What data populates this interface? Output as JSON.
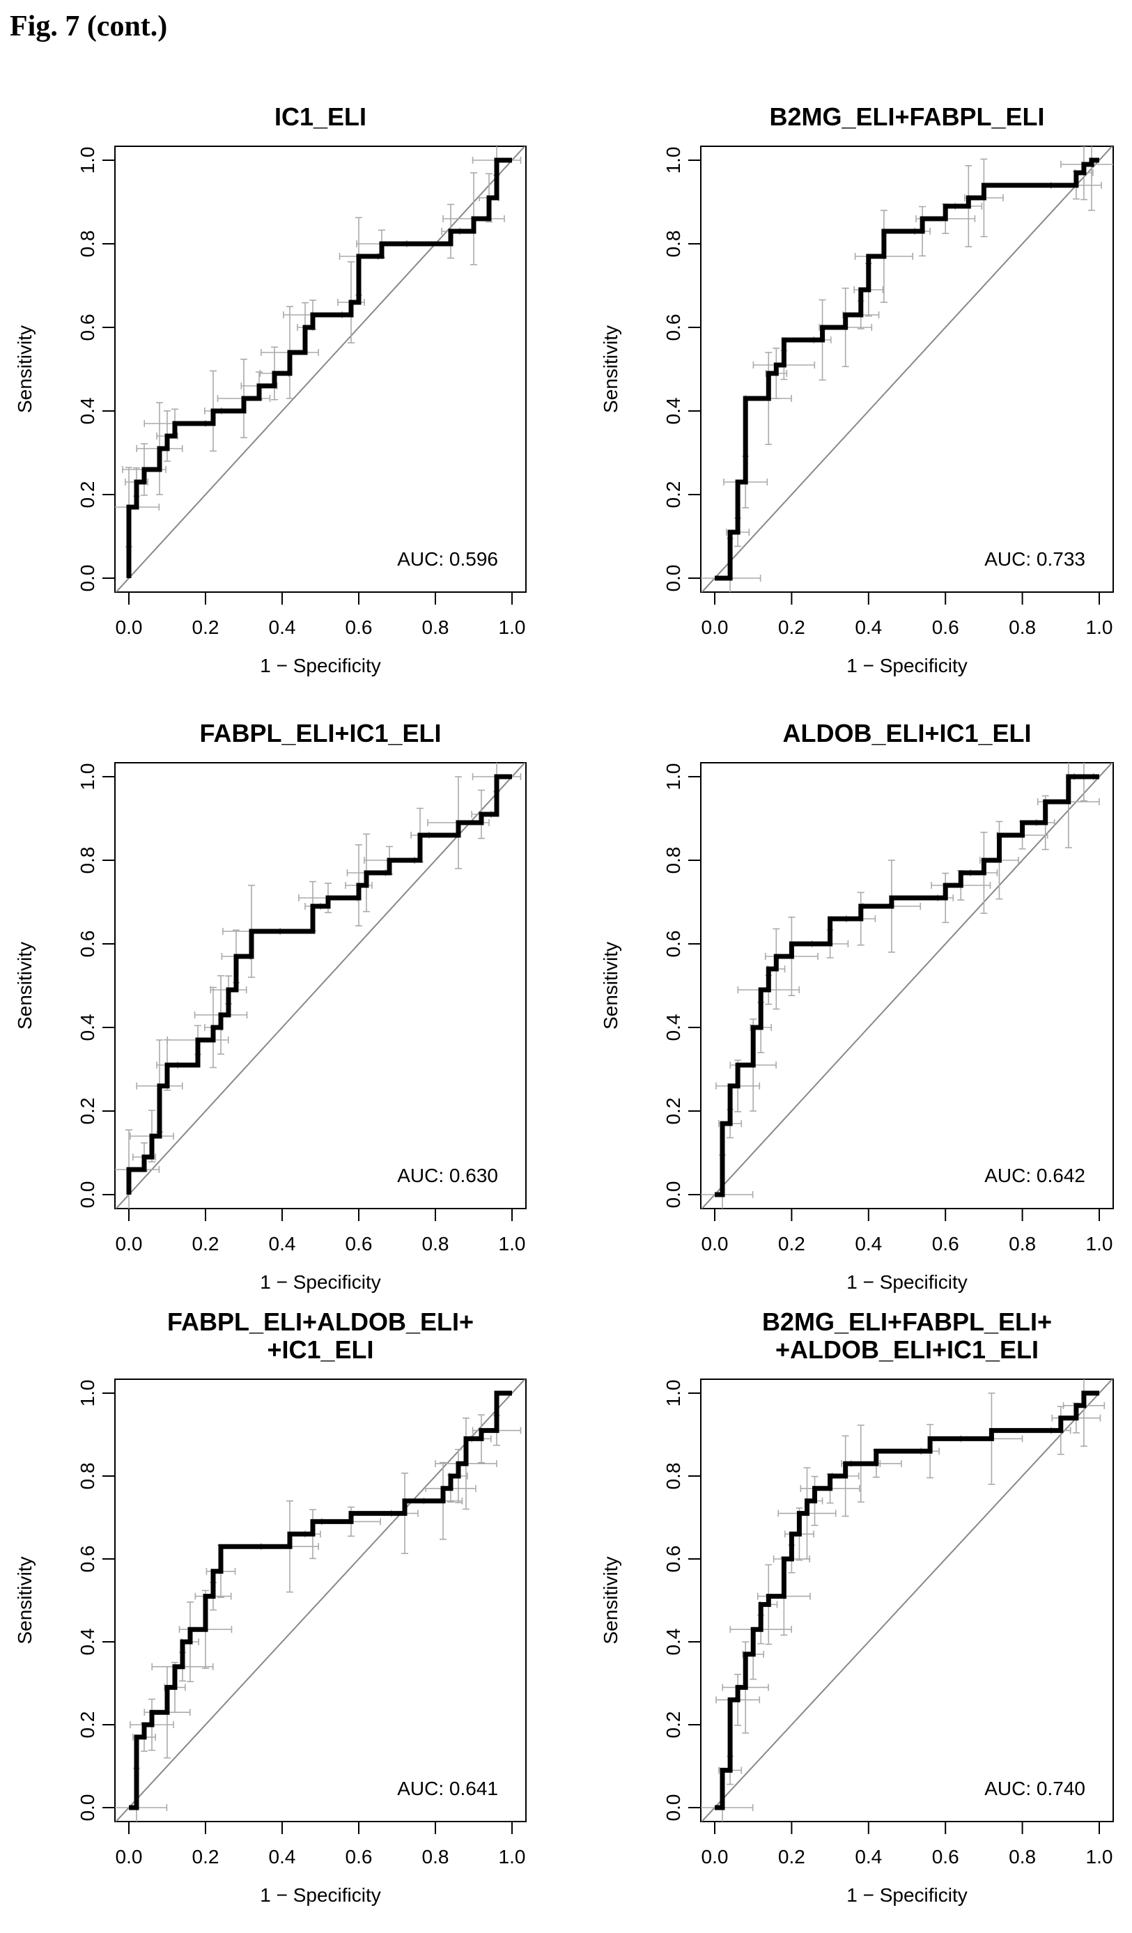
{
  "figure_label": "Fig. 7 (cont.)",
  "chart_data": [
    {
      "type": "line",
      "title": "IC1_ELI",
      "xlabel": "1 − Specificity",
      "ylabel": "Sensitivity",
      "xlim": [
        0,
        1
      ],
      "ylim": [
        0,
        1
      ],
      "xticks": [
        "0.0",
        "0.2",
        "0.4",
        "0.6",
        "0.8",
        "1.0"
      ],
      "yticks": [
        "0.0",
        "0.2",
        "0.4",
        "0.6",
        "0.8",
        "1.0"
      ],
      "auc_label": "AUC: 0.596",
      "series": [
        {
          "x": [
            0,
            0,
            0.02,
            0.02,
            0.04,
            0.04,
            0.08,
            0.08,
            0.1,
            0.1,
            0.12,
            0.12,
            0.22,
            0.22,
            0.3,
            0.3,
            0.34,
            0.34,
            0.38,
            0.38,
            0.42,
            0.42,
            0.46,
            0.46,
            0.48,
            0.48,
            0.58,
            0.58,
            0.6,
            0.6,
            0.66,
            0.66,
            0.84,
            0.84,
            0.9,
            0.9,
            0.94,
            0.94,
            0.96,
            0.96,
            1.0
          ],
          "y": [
            0,
            0.17,
            0.17,
            0.23,
            0.23,
            0.26,
            0.26,
            0.31,
            0.31,
            0.34,
            0.34,
            0.37,
            0.37,
            0.4,
            0.4,
            0.43,
            0.43,
            0.46,
            0.46,
            0.49,
            0.49,
            0.54,
            0.54,
            0.6,
            0.6,
            0.63,
            0.63,
            0.66,
            0.66,
            0.77,
            0.77,
            0.8,
            0.8,
            0.83,
            0.83,
            0.86,
            0.86,
            0.91,
            0.91,
            1.0,
            1.0
          ]
        }
      ]
    },
    {
      "type": "line",
      "title": "B2MG_ELI+FABPL_ELI",
      "xlabel": "1 − Specificity",
      "ylabel": "Sensitivity",
      "xlim": [
        0,
        1
      ],
      "ylim": [
        0,
        1
      ],
      "xticks": [
        "0.0",
        "0.2",
        "0.4",
        "0.6",
        "0.8",
        "1.0"
      ],
      "yticks": [
        "0.0",
        "0.2",
        "0.4",
        "0.6",
        "0.8",
        "1.0"
      ],
      "auc_label": "AUC: 0.733",
      "series": [
        {
          "x": [
            0,
            0.04,
            0.04,
            0.06,
            0.06,
            0.08,
            0.08,
            0.14,
            0.14,
            0.16,
            0.16,
            0.18,
            0.18,
            0.28,
            0.28,
            0.34,
            0.34,
            0.38,
            0.38,
            0.4,
            0.4,
            0.44,
            0.44,
            0.54,
            0.54,
            0.6,
            0.6,
            0.66,
            0.66,
            0.7,
            0.7,
            0.94,
            0.94,
            0.96,
            0.96,
            0.98,
            0.98,
            1.0
          ],
          "y": [
            0,
            0,
            0.11,
            0.11,
            0.23,
            0.23,
            0.43,
            0.43,
            0.49,
            0.49,
            0.51,
            0.51,
            0.57,
            0.57,
            0.6,
            0.6,
            0.63,
            0.63,
            0.69,
            0.69,
            0.77,
            0.77,
            0.83,
            0.83,
            0.86,
            0.86,
            0.89,
            0.89,
            0.91,
            0.91,
            0.94,
            0.94,
            0.97,
            0.97,
            0.99,
            0.99,
            1.0,
            1.0
          ]
        }
      ]
    },
    {
      "type": "line",
      "title": "FABPL_ELI+IC1_ELI",
      "xlabel": "1 − Specificity",
      "ylabel": "Sensitivity",
      "xlim": [
        0,
        1
      ],
      "ylim": [
        0,
        1
      ],
      "xticks": [
        "0.0",
        "0.2",
        "0.4",
        "0.6",
        "0.8",
        "1.0"
      ],
      "yticks": [
        "0.0",
        "0.2",
        "0.4",
        "0.6",
        "0.8",
        "1.0"
      ],
      "auc_label": "AUC: 0.630",
      "series": [
        {
          "x": [
            0,
            0,
            0.04,
            0.04,
            0.06,
            0.06,
            0.08,
            0.08,
            0.1,
            0.1,
            0.18,
            0.18,
            0.22,
            0.22,
            0.24,
            0.24,
            0.26,
            0.26,
            0.28,
            0.28,
            0.32,
            0.32,
            0.48,
            0.48,
            0.52,
            0.52,
            0.6,
            0.6,
            0.62,
            0.62,
            0.68,
            0.68,
            0.76,
            0.76,
            0.86,
            0.86,
            0.92,
            0.92,
            0.96,
            0.96,
            1.0
          ],
          "y": [
            0,
            0.06,
            0.06,
            0.09,
            0.09,
            0.14,
            0.14,
            0.26,
            0.26,
            0.31,
            0.31,
            0.37,
            0.37,
            0.4,
            0.4,
            0.43,
            0.43,
            0.49,
            0.49,
            0.57,
            0.57,
            0.63,
            0.63,
            0.69,
            0.69,
            0.71,
            0.71,
            0.74,
            0.74,
            0.77,
            0.77,
            0.8,
            0.8,
            0.86,
            0.86,
            0.89,
            0.89,
            0.91,
            0.91,
            1.0,
            1.0
          ]
        }
      ]
    },
    {
      "type": "line",
      "title": "ALDOB_ELI+IC1_ELI",
      "xlabel": "1 − Specificity",
      "ylabel": "Sensitivity",
      "xlim": [
        0,
        1
      ],
      "ylim": [
        0,
        1
      ],
      "xticks": [
        "0.0",
        "0.2",
        "0.4",
        "0.6",
        "0.8",
        "1.0"
      ],
      "yticks": [
        "0.0",
        "0.2",
        "0.4",
        "0.6",
        "0.8",
        "1.0"
      ],
      "auc_label": "AUC: 0.642",
      "series": [
        {
          "x": [
            0,
            0.02,
            0.02,
            0.04,
            0.04,
            0.06,
            0.06,
            0.1,
            0.1,
            0.12,
            0.12,
            0.14,
            0.14,
            0.16,
            0.16,
            0.2,
            0.2,
            0.3,
            0.3,
            0.38,
            0.38,
            0.46,
            0.46,
            0.6,
            0.6,
            0.64,
            0.64,
            0.7,
            0.7,
            0.74,
            0.74,
            0.8,
            0.8,
            0.86,
            0.86,
            0.92,
            0.92,
            0.96,
            0.96,
            1.0
          ],
          "y": [
            0,
            0,
            0.17,
            0.17,
            0.26,
            0.26,
            0.31,
            0.31,
            0.4,
            0.4,
            0.49,
            0.49,
            0.54,
            0.54,
            0.57,
            0.57,
            0.6,
            0.6,
            0.66,
            0.66,
            0.69,
            0.69,
            0.71,
            0.71,
            0.74,
            0.74,
            0.77,
            0.77,
            0.8,
            0.8,
            0.86,
            0.86,
            0.89,
            0.89,
            0.94,
            0.94,
            1.0,
            1.0,
            1.0,
            1.0
          ]
        }
      ]
    },
    {
      "type": "line",
      "title": "FABPL_ELI+ALDOB_ELI+\n+IC1_ELI",
      "xlabel": "1 − Specificity",
      "ylabel": "Sensitivity",
      "xlim": [
        0,
        1
      ],
      "ylim": [
        0,
        1
      ],
      "xticks": [
        "0.0",
        "0.2",
        "0.4",
        "0.6",
        "0.8",
        "1.0"
      ],
      "yticks": [
        "0.0",
        "0.2",
        "0.4",
        "0.6",
        "0.8",
        "1.0"
      ],
      "auc_label": "AUC: 0.641",
      "series": [
        {
          "x": [
            0,
            0.02,
            0.02,
            0.04,
            0.04,
            0.06,
            0.06,
            0.1,
            0.1,
            0.12,
            0.12,
            0.14,
            0.14,
            0.16,
            0.16,
            0.2,
            0.2,
            0.22,
            0.22,
            0.24,
            0.24,
            0.42,
            0.42,
            0.48,
            0.48,
            0.58,
            0.58,
            0.72,
            0.72,
            0.82,
            0.82,
            0.84,
            0.84,
            0.86,
            0.86,
            0.88,
            0.88,
            0.92,
            0.92,
            0.96,
            0.96,
            1.0
          ],
          "y": [
            0,
            0,
            0.17,
            0.17,
            0.2,
            0.2,
            0.23,
            0.23,
            0.29,
            0.29,
            0.34,
            0.34,
            0.4,
            0.4,
            0.43,
            0.43,
            0.51,
            0.51,
            0.57,
            0.57,
            0.63,
            0.63,
            0.66,
            0.66,
            0.69,
            0.69,
            0.71,
            0.71,
            0.74,
            0.74,
            0.77,
            0.77,
            0.8,
            0.8,
            0.83,
            0.83,
            0.89,
            0.89,
            0.91,
            0.91,
            1.0,
            1.0
          ]
        }
      ]
    },
    {
      "type": "line",
      "title": "B2MG_ELI+FABPL_ELI+\n+ALDOB_ELI+IC1_ELI",
      "xlabel": "1 − Specificity",
      "ylabel": "Sensitivity",
      "xlim": [
        0,
        1
      ],
      "ylim": [
        0,
        1
      ],
      "xticks": [
        "0.0",
        "0.2",
        "0.4",
        "0.6",
        "0.8",
        "1.0"
      ],
      "yticks": [
        "0.0",
        "0.2",
        "0.4",
        "0.6",
        "0.8",
        "1.0"
      ],
      "auc_label": "AUC: 0.740",
      "series": [
        {
          "x": [
            0,
            0.02,
            0.02,
            0.04,
            0.04,
            0.06,
            0.06,
            0.08,
            0.08,
            0.1,
            0.1,
            0.12,
            0.12,
            0.14,
            0.14,
            0.18,
            0.18,
            0.2,
            0.2,
            0.22,
            0.22,
            0.24,
            0.24,
            0.26,
            0.26,
            0.3,
            0.3,
            0.34,
            0.34,
            0.38,
            0.38,
            0.42,
            0.42,
            0.56,
            0.56,
            0.72,
            0.72,
            0.9,
            0.9,
            0.94,
            0.94,
            0.96,
            0.96,
            1.0
          ],
          "y": [
            0,
            0,
            0.09,
            0.09,
            0.26,
            0.26,
            0.29,
            0.29,
            0.37,
            0.37,
            0.43,
            0.43,
            0.49,
            0.49,
            0.51,
            0.51,
            0.6,
            0.6,
            0.66,
            0.66,
            0.71,
            0.71,
            0.74,
            0.74,
            0.77,
            0.77,
            0.8,
            0.8,
            0.83,
            0.83,
            0.83,
            0.83,
            0.86,
            0.86,
            0.89,
            0.89,
            0.91,
            0.91,
            0.94,
            0.94,
            0.97,
            0.97,
            1.0,
            1.0
          ]
        }
      ]
    }
  ]
}
